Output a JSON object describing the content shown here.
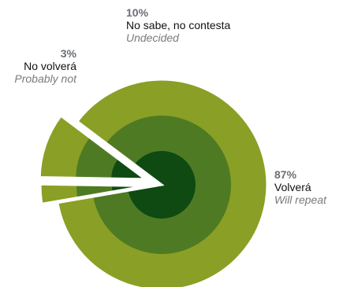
{
  "chart_data": {
    "type": "pie",
    "slices": [
      {
        "key": "will_repeat",
        "percent_label": "87%",
        "value": 87,
        "label_es": "Volverá",
        "label_en": "Will repeat"
      },
      {
        "key": "probably_not",
        "percent_label": "3%",
        "value": 3,
        "label_es": "No volverá",
        "label_en": "Probably not"
      },
      {
        "key": "undecided",
        "percent_label": "10%",
        "value": 10,
        "label_es": "No sabe, no contesta",
        "label_en": "Undecided"
      }
    ],
    "colors": {
      "outer_ring": "#8a9f25",
      "middle_ring": "#4f7a24",
      "inner_ring": "#0e4a12",
      "separator": "#ffffff"
    },
    "legend": "none"
  }
}
